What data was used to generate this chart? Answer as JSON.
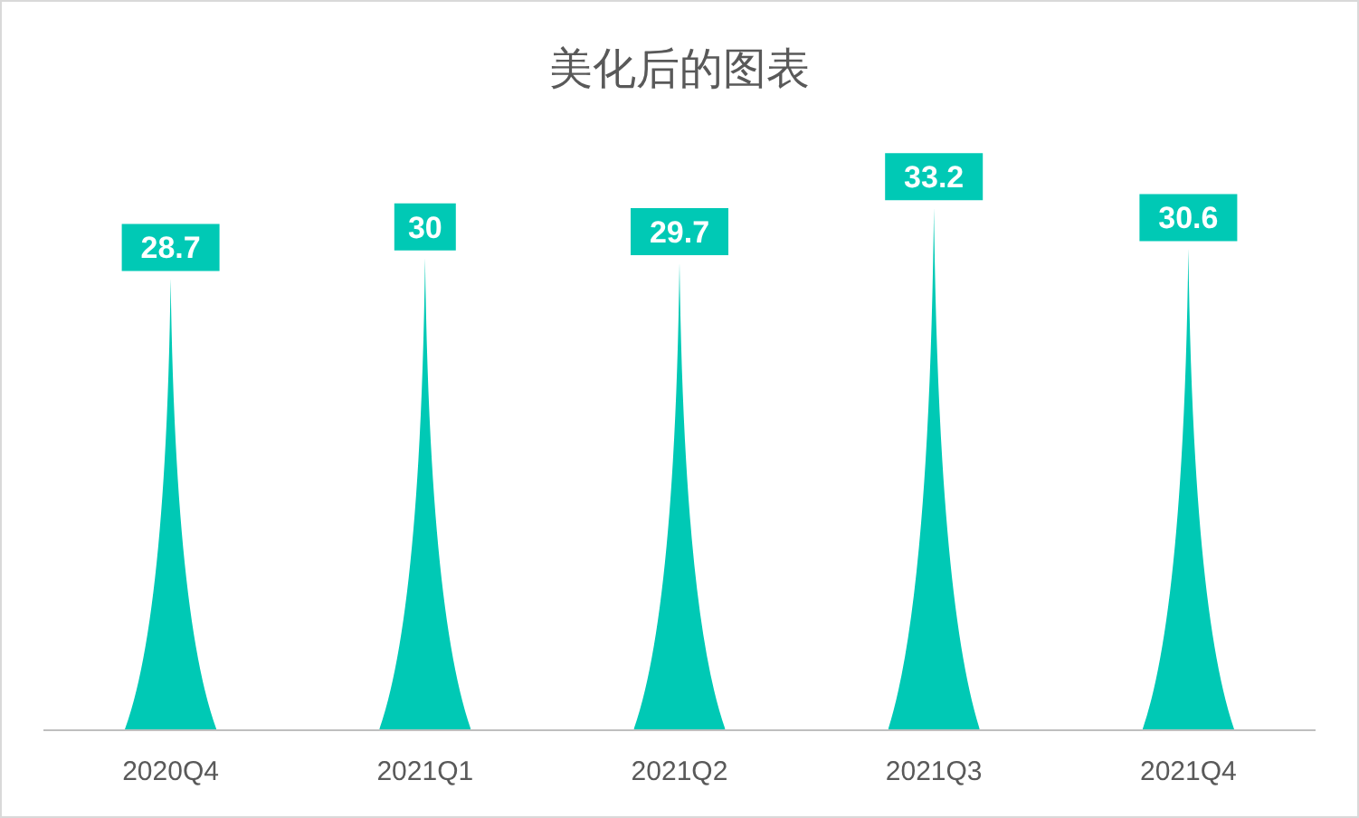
{
  "chart_data": {
    "type": "bar",
    "title": "美化后的图表",
    "categories": [
      "2020Q4",
      "2021Q1",
      "2021Q2",
      "2021Q3",
      "2021Q4"
    ],
    "values": [
      28.7,
      30,
      29.7,
      33.2,
      30.6
    ],
    "color": "#00c9b5",
    "data_labels": true
  }
}
